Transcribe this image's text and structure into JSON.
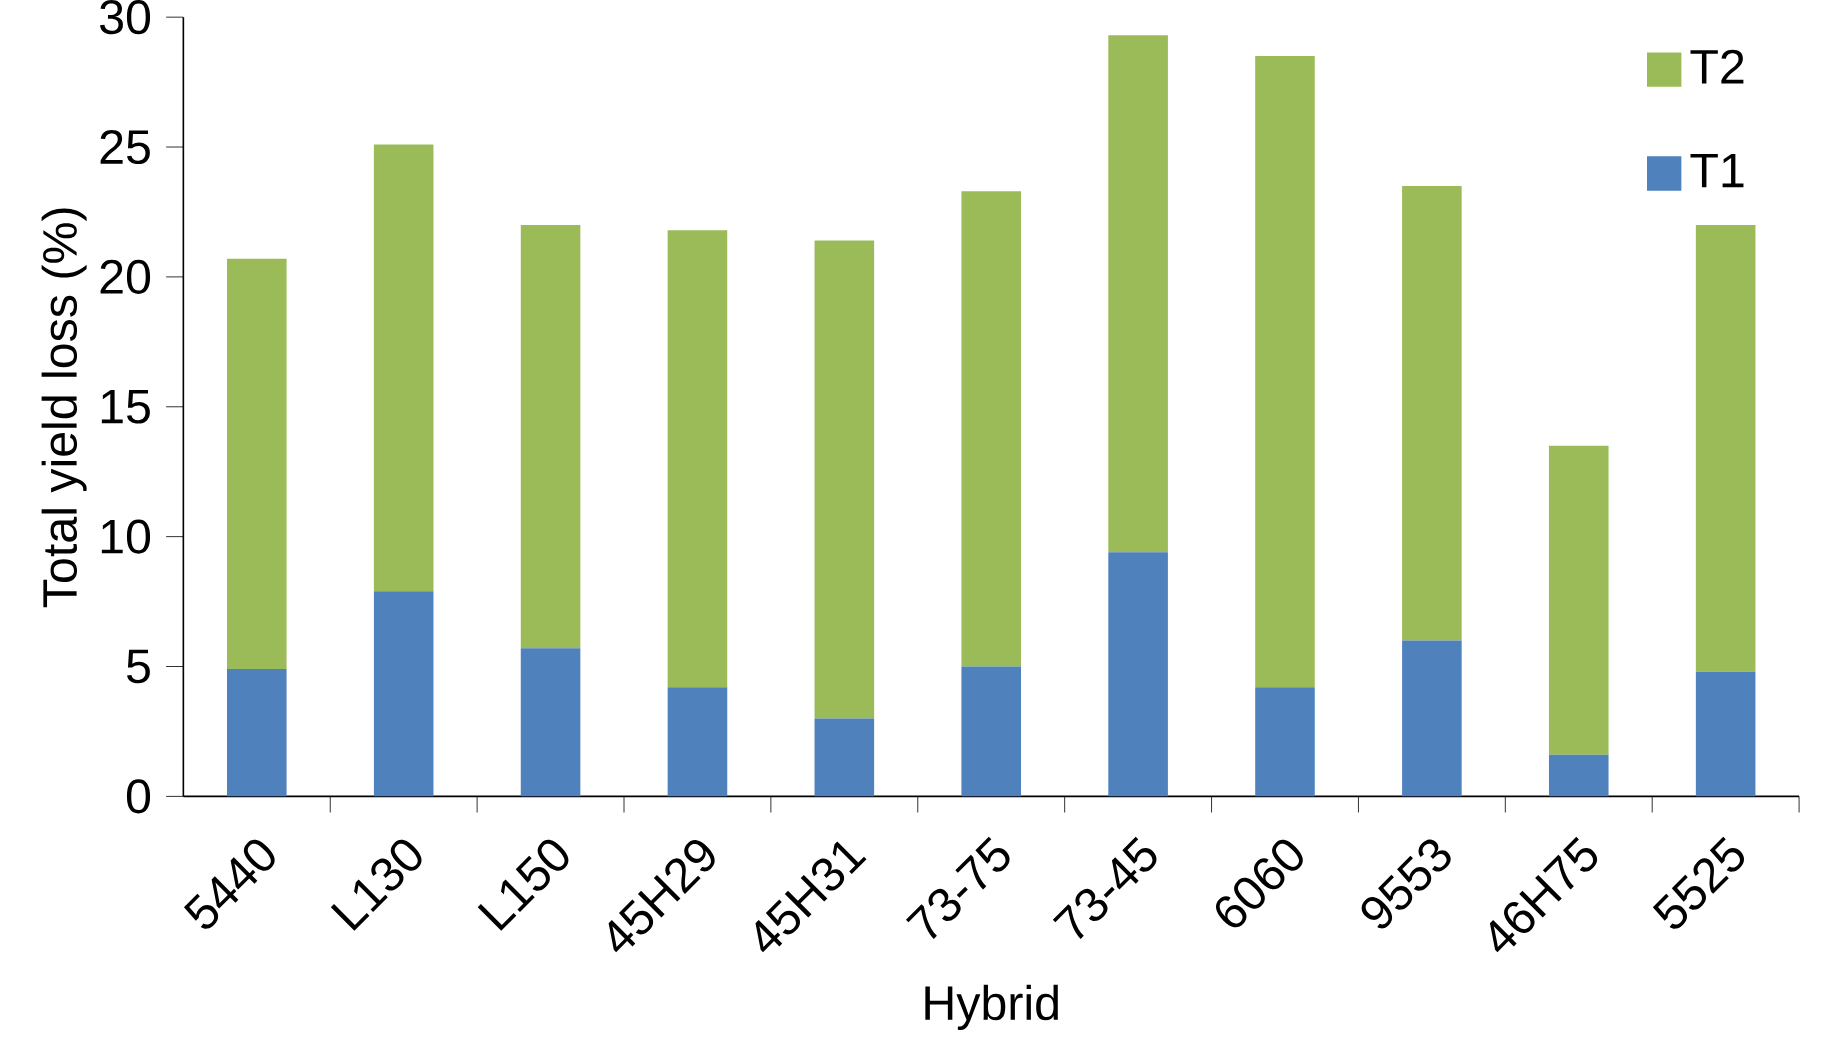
{
  "chart_data": {
    "type": "bar",
    "stacked": true,
    "xlabel": "Hybrid",
    "ylabel": "Total yield loss (%)",
    "categories": [
      "5440",
      "L130",
      "L150",
      "45H29",
      "45H31",
      "73-75",
      "73-45",
      "6060",
      "9553",
      "46H75",
      "5525"
    ],
    "series": [
      {
        "name": "T1",
        "color": "#4f81bd",
        "values": [
          4.9,
          7.9,
          5.7,
          4.2,
          3.0,
          5.0,
          9.4,
          4.2,
          6.0,
          1.6,
          4.8
        ]
      },
      {
        "name": "T2",
        "color": "#9bbb59",
        "values": [
          15.8,
          17.2,
          16.3,
          17.6,
          18.4,
          18.3,
          19.9,
          24.3,
          17.5,
          11.9,
          17.2
        ]
      }
    ],
    "ylim": [
      0,
      30
    ],
    "yticks": [
      0,
      5,
      10,
      15,
      20,
      25,
      30
    ],
    "grid": false,
    "legend": "top right"
  }
}
